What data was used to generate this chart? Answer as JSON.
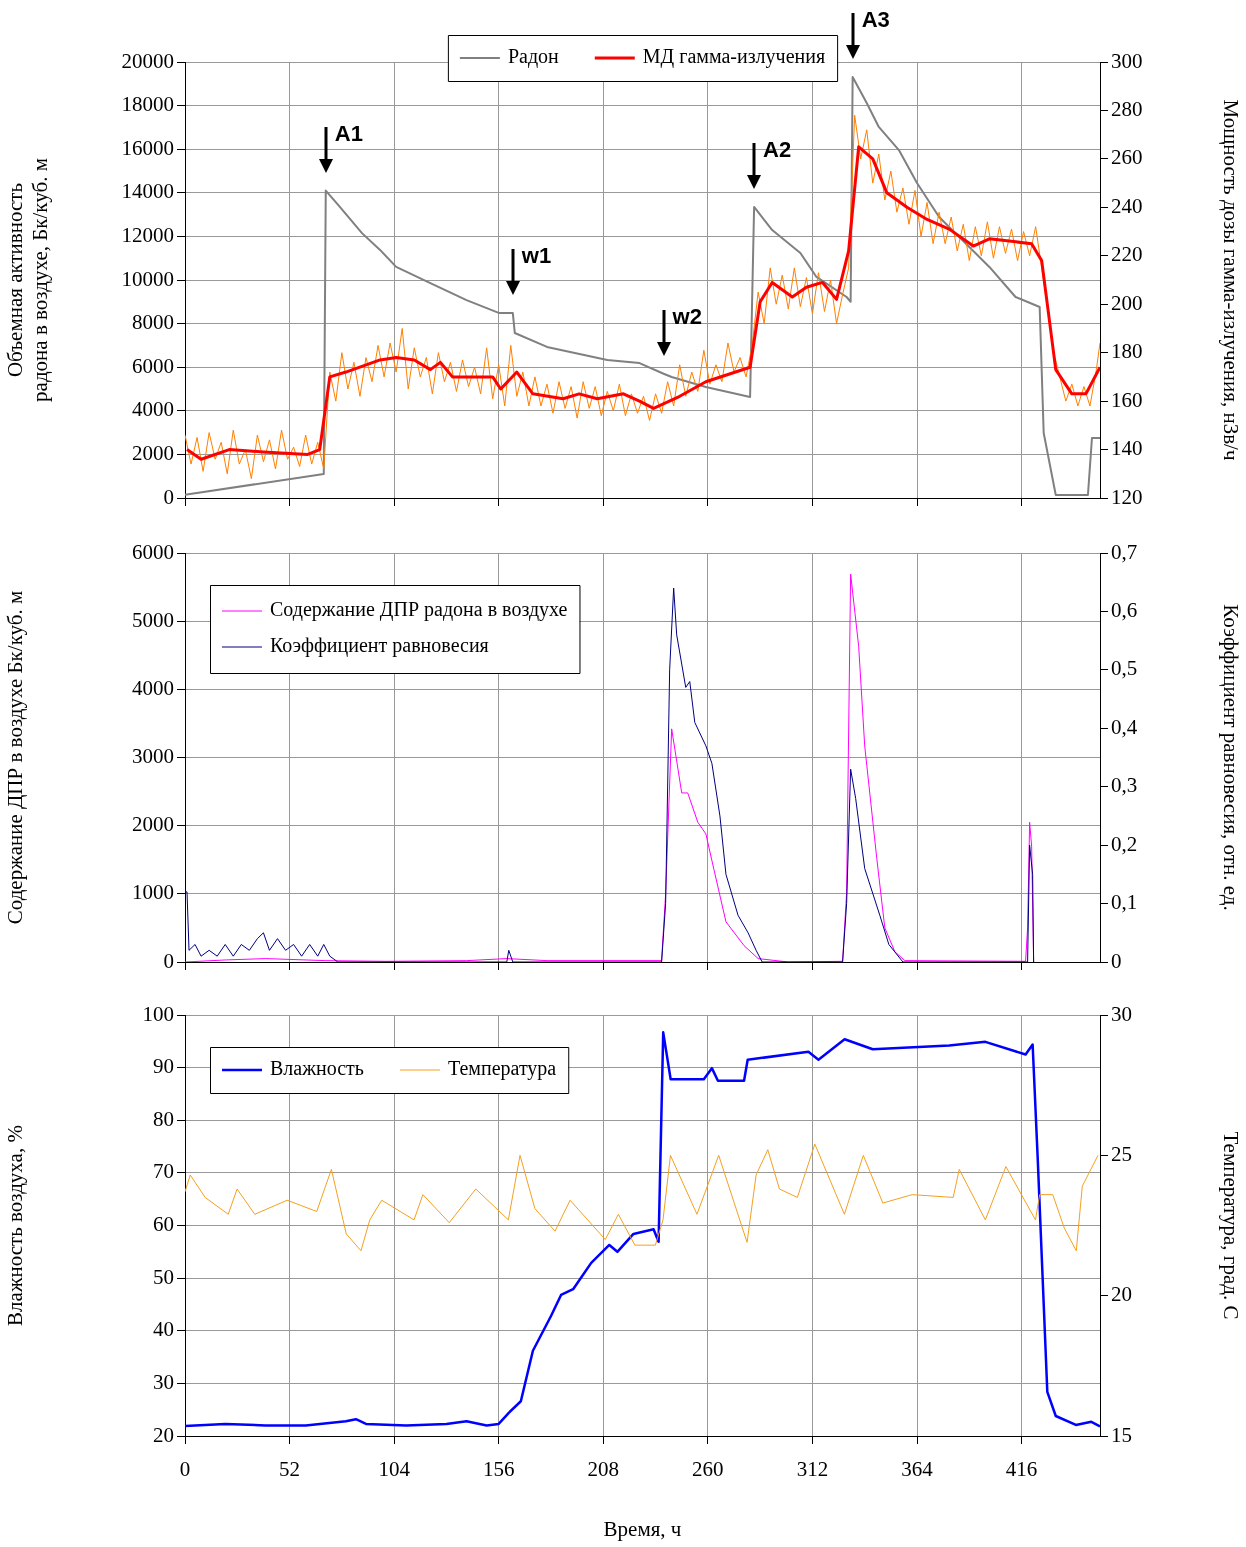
{
  "chart_data": [
    {
      "type": "line",
      "xlim": [
        0,
        455
      ],
      "xticks": [
        0,
        52,
        104,
        156,
        208,
        260,
        312,
        364,
        416
      ],
      "ylim": [
        0,
        20000
      ],
      "yticks": [
        0,
        2000,
        4000,
        6000,
        8000,
        10000,
        12000,
        14000,
        16000,
        18000,
        20000
      ],
      "y2lim": [
        120,
        300
      ],
      "y2ticks": [
        120,
        140,
        160,
        180,
        200,
        220,
        240,
        260,
        280,
        300
      ],
      "ylabel": "Объемная активность радона в воздухе, Бк/куб. м",
      "y2label": "Мощность дозы гамма-излучения, нЗв/ч",
      "grid": true,
      "legend": "top",
      "tick_labels": "y",
      "marker": "none",
      "series": [
        {
          "name": "Радон",
          "color": "#808080",
          "x": [
            0,
            69,
            70,
            77,
            88,
            97,
            105,
            122,
            140,
            156,
            163,
            164,
            180,
            210,
            226,
            238,
            242,
            259,
            281,
            283,
            292,
            306,
            314,
            329,
            331,
            332,
            339,
            345,
            355,
            364,
            375,
            385,
            400,
            413,
            425,
            427,
            433,
            449,
            451,
            455
          ],
          "values": [
            150,
            1100,
            14100,
            13350,
            12150,
            11380,
            10600,
            9860,
            9080,
            8490,
            8490,
            7570,
            6930,
            6330,
            6190,
            5700,
            5550,
            5090,
            4630,
            13350,
            12290,
            11240,
            10140,
            9220,
            9000,
            19310,
            18120,
            17020,
            15960,
            14450,
            12890,
            11970,
            10600,
            9220,
            8760,
            2980,
            140,
            140,
            2750,
            2750
          ]
        },
        {
          "color": "#ff8000",
          "axis": "y2",
          "x": [
            0,
            3,
            6,
            9,
            12,
            15,
            18,
            21,
            24,
            27,
            30,
            33,
            36,
            39,
            42,
            45,
            48,
            51,
            54,
            57,
            60,
            63,
            66,
            69,
            72,
            75,
            78,
            81,
            84,
            87,
            90,
            93,
            96,
            99,
            102,
            105,
            108,
            111,
            114,
            117,
            120,
            123,
            126,
            129,
            132,
            135,
            138,
            141,
            144,
            147,
            150,
            153,
            156,
            159,
            162,
            165,
            168,
            171,
            174,
            177,
            180,
            183,
            186,
            189,
            192,
            195,
            198,
            201,
            204,
            207,
            210,
            213,
            216,
            219,
            222,
            225,
            228,
            231,
            234,
            237,
            240,
            243,
            246,
            249,
            252,
            255,
            258,
            261,
            264,
            267,
            270,
            273,
            276,
            279,
            282,
            285,
            288,
            291,
            294,
            297,
            300,
            303,
            306,
            309,
            312,
            315,
            318,
            321,
            324,
            327,
            330,
            333,
            336,
            339,
            342,
            345,
            348,
            351,
            354,
            357,
            360,
            363,
            366,
            369,
            372,
            375,
            378,
            381,
            384,
            387,
            390,
            393,
            396,
            399,
            402,
            405,
            408,
            411,
            414,
            417,
            420,
            423,
            426,
            429,
            432,
            435,
            438,
            441,
            444,
            447,
            450,
            453,
            455
          ],
          "values": [
            146,
            134,
            145,
            131,
            147,
            136,
            143,
            130,
            148,
            134,
            140,
            128,
            146,
            135,
            144,
            132,
            148,
            136,
            141,
            133,
            146,
            134,
            143,
            132,
            172,
            160,
            180,
            165,
            176,
            162,
            178,
            168,
            183,
            170,
            184,
            172,
            190,
            165,
            182,
            170,
            178,
            163,
            180,
            168,
            176,
            164,
            177,
            166,
            174,
            163,
            182,
            161,
            175,
            158,
            183,
            162,
            172,
            158,
            170,
            158,
            167,
            155,
            168,
            157,
            166,
            153,
            168,
            157,
            166,
            154,
            164,
            156,
            167,
            154,
            163,
            155,
            162,
            152,
            163,
            155,
            168,
            158,
            175,
            162,
            172,
            164,
            181,
            167,
            175,
            168,
            184,
            172,
            178,
            170,
            183,
            205,
            192,
            215,
            200,
            212,
            198,
            215,
            199,
            211,
            196,
            213,
            197,
            210,
            192,
            204,
            215,
            278,
            260,
            272,
            250,
            262,
            243,
            255,
            238,
            248,
            233,
            247,
            228,
            242,
            225,
            238,
            225,
            236,
            222,
            233,
            218,
            232,
            220,
            234,
            219,
            232,
            221,
            231,
            218,
            230,
            220,
            232,
            215,
            198,
            180,
            170,
            160,
            167,
            158,
            166,
            158,
            172,
            184
          ]
        },
        {
          "name": "МД гамма-излучения",
          "color": "#ff0000",
          "axis": "y2",
          "x": [
            1,
            8,
            22,
            39,
            61,
            67,
            72,
            80,
            97,
            105,
            114,
            122,
            127,
            133,
            153,
            157,
            165,
            173,
            188,
            196,
            205,
            218,
            226,
            233,
            246,
            259,
            281,
            286,
            292,
            302,
            309,
            317,
            324,
            330,
            335,
            342,
            349,
            359,
            369,
            380,
            392,
            400,
            421,
            426,
            433,
            441,
            448,
            455
          ],
          "values": [
            140,
            136,
            140,
            139,
            138,
            140,
            170,
            172,
            177,
            178,
            177,
            173,
            176,
            170,
            170,
            165,
            172,
            163,
            161,
            163,
            161,
            163,
            160,
            157,
            162,
            168,
            174,
            201,
            209,
            203,
            207,
            209,
            202,
            222,
            265,
            260,
            246,
            240,
            235,
            231,
            224,
            227,
            225,
            218,
            173,
            163,
            163,
            174
          ]
        }
      ],
      "annotations": [
        {
          "text": "A1",
          "x": 70,
          "y": 14100
        },
        {
          "text": "A2",
          "x": 283,
          "y": 13350
        },
        {
          "text": "A3",
          "x": 332,
          "y": 19310
        },
        {
          "text": "w1",
          "x": 163,
          "y": 8490
        },
        {
          "text": "w2",
          "x": 238,
          "y": 5700
        }
      ]
    },
    {
      "type": "line",
      "xlim": [
        0,
        455
      ],
      "xticks": [
        0,
        52,
        104,
        156,
        208,
        260,
        312,
        364,
        416
      ],
      "ylim": [
        0,
        6000
      ],
      "yticks": [
        0,
        1000,
        2000,
        3000,
        4000,
        5000,
        6000
      ],
      "y2lim": [
        0,
        0.7
      ],
      "y2ticks": [
        0,
        {
          "value": 0.1,
          "label": "0,1"
        },
        {
          "value": 0.2,
          "label": "0,2"
        },
        {
          "value": 0.3,
          "label": "0,3"
        },
        {
          "value": 0.4,
          "label": "0,4"
        },
        {
          "value": 0.5,
          "label": "0,5"
        },
        {
          "value": 0.6,
          "label": "0,6"
        },
        {
          "value": 0.7,
          "label": "0,7"
        }
      ],
      "ylabel": "Содержание ДПР в воздухе Бк/куб. м",
      "y2label": "Коэффициент равновесия, отн. ед.",
      "grid": true,
      "legend": "top left",
      "tick_labels": "y",
      "marker": "none",
      "series": [
        {
          "name": "Содержание ДПР радона в воздухе",
          "color": "#ff00ff",
          "x": [
            0,
            20,
            40,
            70,
            100,
            140,
            160,
            180,
            237,
            239,
            242,
            247,
            250,
            255,
            259,
            263,
            269,
            278,
            285,
            300,
            327,
            329,
            331,
            335,
            338,
            344,
            348,
            353,
            358,
            418,
            419,
            420,
            421,
            422
          ],
          "values": [
            0,
            30,
            50,
            20,
            10,
            20,
            50,
            20,
            20,
            1000,
            3420,
            2480,
            2480,
            2050,
            1880,
            1360,
            590,
            240,
            50,
            0,
            10,
            1010,
            5690,
            4630,
            3170,
            1520,
            500,
            150,
            20,
            10,
            500,
            2050,
            1700,
            0
          ]
        },
        {
          "name": "Коэффициент равновесия",
          "color": "#000080",
          "axis": "y2",
          "x": [
            0,
            1,
            2,
            5,
            8,
            12,
            16,
            20,
            24,
            28,
            32,
            36,
            39,
            42,
            46,
            50,
            54,
            58,
            62,
            66,
            69,
            72,
            76,
            160,
            161,
            163,
            237,
            239,
            241,
            243,
            244.5,
            249,
            251,
            253.5,
            259,
            262,
            266,
            269,
            275,
            280,
            284,
            287,
            327,
            329,
            331,
            333.5,
            338,
            345.5,
            350,
            357,
            419,
            420,
            421.5,
            422
          ],
          "values": [
            0.12,
            0.12,
            0.02,
            0.03,
            0.01,
            0.02,
            0.01,
            0.03,
            0.01,
            0.03,
            0.02,
            0.04,
            0.05,
            0.02,
            0.04,
            0.02,
            0.03,
            0.01,
            0.03,
            0.01,
            0.03,
            0.01,
            0,
            0,
            0.02,
            0,
            0,
            0.1,
            0.5,
            0.64,
            0.56,
            0.47,
            0.48,
            0.41,
            0.37,
            0.34,
            0.25,
            0.15,
            0.08,
            0.05,
            0.02,
            0,
            0,
            0.1,
            0.33,
            0.28,
            0.16,
            0.08,
            0.03,
            0,
            0,
            0.2,
            0.15,
            0
          ]
        }
      ]
    },
    {
      "type": "line",
      "xlim": [
        0,
        455
      ],
      "xticks": [
        0,
        52,
        104,
        156,
        208,
        260,
        312,
        364,
        416
      ],
      "ylim": [
        20,
        100
      ],
      "yticks": [
        20,
        30,
        40,
        50,
        60,
        70,
        80,
        90,
        100
      ],
      "y2lim": [
        15,
        30
      ],
      "y2ticks": [
        15,
        20,
        25,
        30
      ],
      "xlabel": "Время, ч",
      "ylabel": "Влажность воздуха, %",
      "y2label": "Температура, град. С",
      "grid": true,
      "legend": "top left",
      "marker": "none",
      "series": [
        {
          "name": "Влажность",
          "color": "#0000ff",
          "x": [
            0,
            20,
            40,
            60,
            80,
            85,
            90,
            110,
            130,
            140,
            150,
            156,
            161,
            167,
            173,
            182,
            187,
            193,
            202,
            211,
            215,
            223,
            233,
            235.5,
            237.8,
            241.5,
            258,
            262,
            265,
            278,
            279.8,
            310,
            315,
            328,
            342,
            380,
            398,
            418,
            421.5,
            424,
            428.8,
            433,
            443,
            450.7,
            455
          ],
          "values": [
            21.9,
            22.3,
            22,
            22,
            22.8,
            23.2,
            22.3,
            22,
            22.3,
            22.8,
            22,
            22.3,
            24.4,
            26.6,
            36.2,
            42.8,
            46.8,
            47.9,
            52.9,
            56.3,
            55,
            58.4,
            59.3,
            56.9,
            96.7,
            87.8,
            87.8,
            89.9,
            87.5,
            87.5,
            91.5,
            93,
            91.5,
            95.4,
            93.5,
            94.2,
            94.9,
            92.5,
            94.4,
            73,
            28.4,
            23.8,
            22.1,
            22.7,
            21.8
          ]
        },
        {
          "name": "Температура",
          "color": "#f5a020",
          "axis": "y2",
          "x": [
            0,
            2.6,
            10,
            21.5,
            25.9,
            34.7,
            50.8,
            65.5,
            72.8,
            80.2,
            87.5,
            91.9,
            97.8,
            113.9,
            118.3,
            131.4,
            144.6,
            160.8,
            166.6,
            174,
            184,
            191.5,
            209,
            215.5,
            223.7,
            233.9,
            237.7,
            241.4,
            254.6,
            265.4,
            279.5,
            284,
            289.8,
            295.6,
            304.5,
            313.2,
            327.9,
            337.3,
            347,
            361.6,
            382,
            385,
            398,
            408.2,
            422.9,
            425,
            431.5,
            437.3,
            443.2,
            446.2,
            454
          ],
          "values": [
            23.7,
            24.3,
            23.5,
            22.9,
            23.8,
            22.9,
            23.4,
            23,
            24.5,
            22.2,
            21.6,
            22.7,
            23.4,
            22.7,
            23.6,
            22.6,
            23.8,
            22.7,
            25,
            23.1,
            22.3,
            23.4,
            22,
            22.9,
            21.8,
            21.8,
            22.7,
            25,
            22.9,
            25,
            21.9,
            24.3,
            25.2,
            23.8,
            23.5,
            25.4,
            22.9,
            25,
            23.3,
            23.6,
            23.5,
            24.5,
            22.7,
            24.6,
            22.7,
            23.6,
            23.6,
            22.4,
            21.6,
            23.9,
            25
          ]
        }
      ]
    }
  ]
}
